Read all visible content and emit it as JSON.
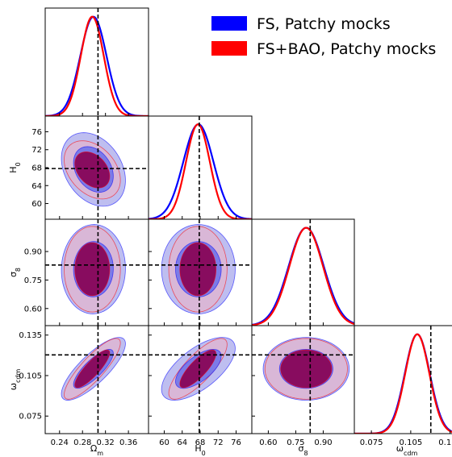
{
  "chart_data": {
    "type": "corner-plot",
    "parameters": [
      {
        "key": "om",
        "label": "Ω",
        "sub": "m",
        "range": [
          0.215,
          0.395
        ],
        "ticks": [
          "0.24",
          "0.28",
          "0.32",
          "0.36"
        ],
        "truth": 0.307
      },
      {
        "key": "h0",
        "label": "H",
        "sub": "0",
        "range": [
          56.5,
          79.5
        ],
        "ticks": [
          "60",
          "64",
          "68",
          "72",
          "76"
        ],
        "truth": 67.8
      },
      {
        "key": "s8",
        "label": "σ",
        "sub": "8",
        "range": [
          0.51,
          1.07
        ],
        "ticks": [
          "0.60",
          "0.75",
          "0.90"
        ],
        "truth": 0.8288
      },
      {
        "key": "wc",
        "label": "ω",
        "sub": "cdm",
        "range": [
          0.062,
          0.142
        ],
        "ticks": [
          "0.075",
          "0.105",
          "0.135"
        ],
        "truth": 0.1203
      }
    ],
    "series": [
      {
        "name": "FS, Patchy mocks",
        "color": "#0000ff",
        "fill68": "#7777e8",
        "fill95": "#b7b7ee",
        "mean": [
          0.299,
          67.6,
          0.807,
          0.11
        ],
        "sd": [
          0.0228,
          3.35,
          0.096,
          0.0095
        ],
        "corr": {
          "om_h0": -0.3,
          "om_s8": 0.02,
          "om_wc": 0.8,
          "h0_s8": 0.0,
          "h0_wc": 0.65,
          "s8_wc": 0.0
        }
      },
      {
        "name": "FS+BAO, Patchy mocks",
        "color": "#ff0000",
        "fill68": "#8a0050",
        "fill95": "#e4b3cc",
        "mean": [
          0.297,
          67.5,
          0.807,
          0.11
        ],
        "sd": [
          0.02,
          2.65,
          0.092,
          0.0092
        ],
        "corr": {
          "om_h0": -0.35,
          "om_s8": 0.0,
          "om_wc": 0.85,
          "h0_s8": 0.0,
          "h0_wc": 0.8,
          "s8_wc": 0.0
        }
      }
    ],
    "truth_line": {
      "style": "dashed",
      "color": "#000000"
    },
    "legend_position": "top-right"
  }
}
